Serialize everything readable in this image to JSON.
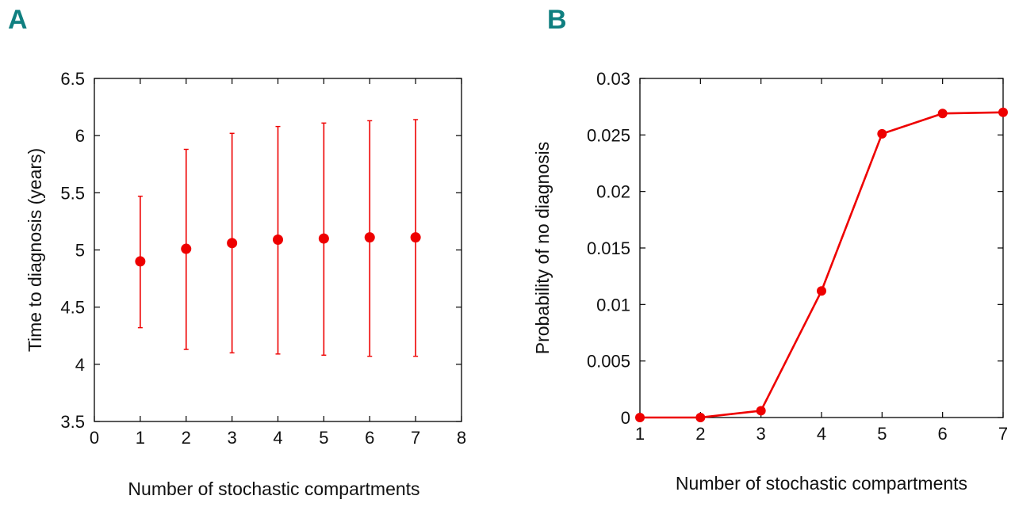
{
  "panels": {
    "a_label": "A",
    "b_label": "B"
  },
  "colors": {
    "series": "#ee0000",
    "panel_label": "#0f7f80",
    "axis": "#000000"
  },
  "chart_data": [
    {
      "type": "scatter",
      "panel": "A",
      "title": "",
      "xlabel": "Number of stochastic compartments",
      "ylabel": "Time to diagnosis (years)",
      "xlim": [
        0,
        8
      ],
      "ylim": [
        3.5,
        6.5
      ],
      "xticks": [
        0,
        1,
        2,
        3,
        4,
        5,
        6,
        7,
        8
      ],
      "yticks": [
        3.5,
        4,
        4.5,
        5,
        5.5,
        6,
        6.5
      ],
      "ytick_labels": [
        "3.5",
        "4",
        "4.5",
        "5",
        "5.5",
        "6",
        "6.5"
      ],
      "grid": false,
      "error_bars": true,
      "x": [
        1,
        2,
        3,
        4,
        5,
        6,
        7
      ],
      "y": [
        4.9,
        5.01,
        5.06,
        5.09,
        5.1,
        5.11,
        5.11
      ],
      "y_lower": [
        4.32,
        4.13,
        4.1,
        4.09,
        4.08,
        4.07,
        4.07
      ],
      "y_upper": [
        5.47,
        5.88,
        6.02,
        6.08,
        6.11,
        6.13,
        6.14
      ]
    },
    {
      "type": "line",
      "panel": "B",
      "title": "",
      "xlabel": "Number of stochastic compartments",
      "ylabel": "Probability of no diagnosis",
      "xlim": [
        1,
        7
      ],
      "ylim": [
        0,
        0.03
      ],
      "xticks": [
        1,
        2,
        3,
        4,
        5,
        6,
        7
      ],
      "yticks": [
        0,
        0.005,
        0.01,
        0.015,
        0.02,
        0.025,
        0.03
      ],
      "ytick_labels": [
        "0",
        "0.005",
        "0.01",
        "0.015",
        "0.02",
        "0.025",
        "0.03"
      ],
      "grid": false,
      "markers": true,
      "x": [
        1,
        2,
        3,
        4,
        5,
        6,
        7
      ],
      "y": [
        0.0,
        0.0,
        0.0006,
        0.0112,
        0.0251,
        0.0269,
        0.027
      ]
    }
  ]
}
